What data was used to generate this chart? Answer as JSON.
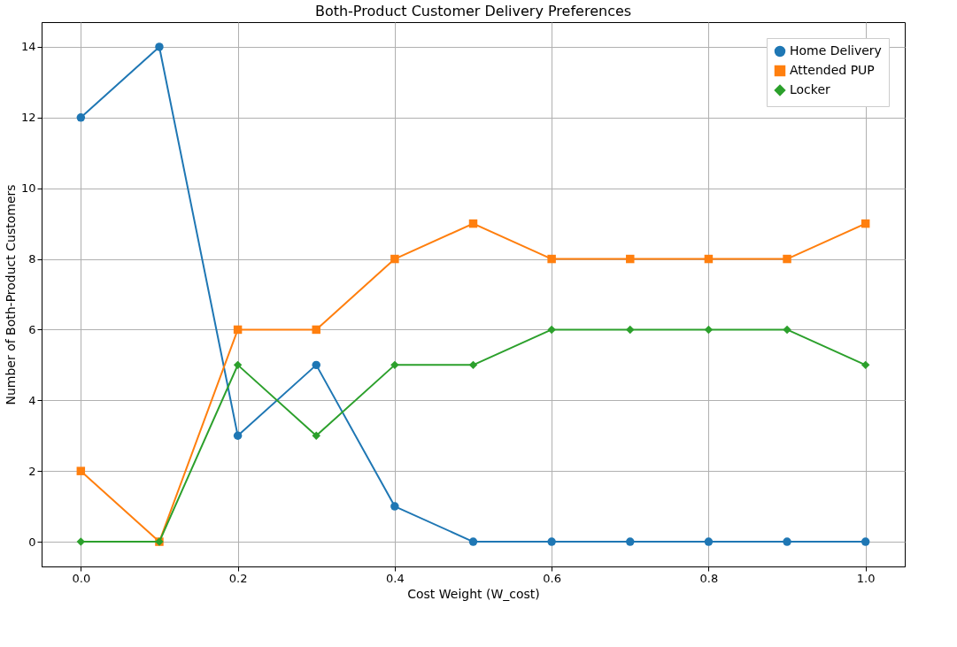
{
  "chart_data": {
    "type": "line",
    "title": "Both-Product Customer Delivery Preferences",
    "xlabel": "Cost Weight (W_cost)",
    "ylabel": "Number of Both-Product Customers",
    "x": [
      0.0,
      0.1,
      0.2,
      0.3,
      0.4,
      0.5,
      0.6,
      0.7,
      0.8,
      0.9,
      1.0
    ],
    "series": [
      {
        "name": "Home Delivery",
        "color": "#1f77b4",
        "marker": "circle",
        "values": [
          12,
          14,
          3,
          5,
          1,
          0,
          0,
          0,
          0,
          0,
          0
        ]
      },
      {
        "name": "Attended PUP",
        "color": "#ff7f0e",
        "marker": "square",
        "values": [
          2,
          0,
          6,
          6,
          8,
          9,
          8,
          8,
          8,
          8,
          9
        ]
      },
      {
        "name": "Locker",
        "color": "#2ca02c",
        "marker": "diamond",
        "values": [
          0,
          0,
          5,
          3,
          5,
          5,
          6,
          6,
          6,
          6,
          5
        ]
      }
    ],
    "xlim": [
      -0.05,
      1.05
    ],
    "xticks": [
      {
        "value": 0.0,
        "label": "0.0"
      },
      0.2,
      0.4,
      0.6,
      0.8,
      {
        "value": 1.0,
        "label": "1.0"
      }
    ],
    "ylim": [
      -0.7,
      14.7
    ],
    "yticks": [
      0,
      2,
      4,
      6,
      8,
      10,
      12,
      14
    ],
    "grid": true,
    "legend": "top right",
    "line_style": "solid"
  }
}
